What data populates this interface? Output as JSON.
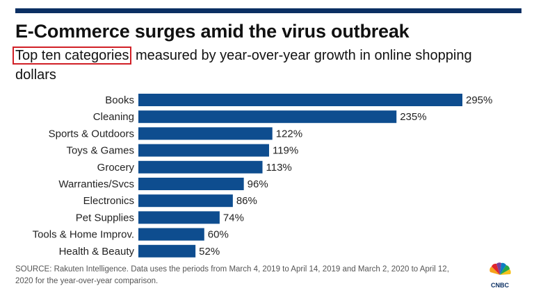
{
  "title": "E-Commerce surges amid the virus outbreak",
  "subtitle_highlight": "Top ten categories",
  "subtitle_rest": " measured by year-over-year growth in online shopping dollars",
  "source": "SOURCE: Rakuten Intelligence. Data uses the periods from March 4, 2019 to April 14, 2019 and March 2, 2020 to April 12, 2020 for the year-over-year comparison.",
  "logo_text": "CNBC",
  "colors": {
    "bar": "#0e4d8f",
    "top_rule": "#0b2f63",
    "highlight_box": "#d11f26"
  },
  "chart_data": {
    "type": "bar",
    "orientation": "horizontal",
    "categories": [
      "Books",
      "Cleaning",
      "Sports & Outdoors",
      "Toys & Games",
      "Grocery",
      "Warranties/Svcs",
      "Electronics",
      "Pet Supplies",
      "Tools & Home Improv.",
      "Health & Beauty"
    ],
    "values": [
      295,
      235,
      122,
      119,
      113,
      96,
      86,
      74,
      60,
      52
    ],
    "value_labels": [
      "295%",
      "235%",
      "122%",
      "119%",
      "113%",
      "96%",
      "86%",
      "74%",
      "60%",
      "52%"
    ],
    "unit": "%",
    "grid": false,
    "legend": "none"
  }
}
